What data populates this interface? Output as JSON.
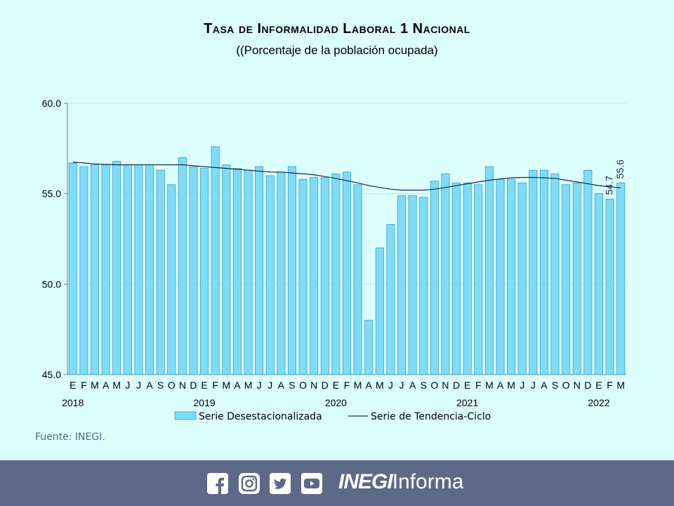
{
  "header": {
    "title": "Tasa de Informalidad Laboral 1 Nacional",
    "subtitle": "((Porcentaje de la población ocupada)"
  },
  "source": "Fuente: INEGI.",
  "footer": {
    "icons": [
      "facebook-icon",
      "instagram-icon",
      "twitter-icon",
      "youtube-icon"
    ],
    "brand_bold": "INEGI",
    "brand_light": "Informa"
  },
  "colors": {
    "bar_fill": "#7fdcf8",
    "bar_stroke": "#3a9fc7",
    "trend": "#1b2a4a",
    "background": "#dcfffe",
    "footer": "#5c6987"
  },
  "chart_data": {
    "type": "bar",
    "title": "Tasa de Informalidad Laboral 1 Nacional",
    "subtitle": "((Porcentaje de la población ocupada)",
    "ylim": [
      45.0,
      60.0
    ],
    "yticks": [
      "45.0",
      "50.0",
      "55.0",
      "60.0"
    ],
    "grid": true,
    "legend_position": "bottom",
    "categories": [
      "E",
      "F",
      "M",
      "A",
      "M",
      "J",
      "J",
      "A",
      "S",
      "O",
      "N",
      "D",
      "E",
      "F",
      "M",
      "A",
      "M",
      "J",
      "J",
      "A",
      "S",
      "O",
      "N",
      "D",
      "E",
      "F",
      "M",
      "A",
      "M",
      "J",
      "J",
      "A",
      "S",
      "O",
      "N",
      "D",
      "E",
      "F",
      "M",
      "A",
      "M",
      "J",
      "J",
      "A",
      "S",
      "O",
      "N",
      "D",
      "E",
      "F",
      "M"
    ],
    "years": [
      {
        "label": "2018",
        "index": 0
      },
      {
        "label": "2019",
        "index": 12
      },
      {
        "label": "2020",
        "index": 24
      },
      {
        "label": "2021",
        "index": 36
      },
      {
        "label": "2022",
        "index": 48
      }
    ],
    "series": [
      {
        "name": "Serie Desestacionalizada",
        "type": "bar",
        "values": [
          56.7,
          56.5,
          56.6,
          56.6,
          56.8,
          56.6,
          56.6,
          56.6,
          56.3,
          55.5,
          57.0,
          56.5,
          56.4,
          57.6,
          56.6,
          56.4,
          56.3,
          56.5,
          56.0,
          56.2,
          56.5,
          55.8,
          55.9,
          55.9,
          56.1,
          56.2,
          55.5,
          48.0,
          52.0,
          53.3,
          54.9,
          54.9,
          54.8,
          55.7,
          56.1,
          55.6,
          55.6,
          55.5,
          56.5,
          55.8,
          55.8,
          55.6,
          56.3,
          56.3,
          56.1,
          55.5,
          55.6,
          56.3,
          55.0,
          54.7,
          55.6
        ]
      },
      {
        "name": "Serie de Tendencia-Ciclo",
        "type": "line",
        "values": [
          56.75,
          56.7,
          56.65,
          56.62,
          56.6,
          56.6,
          56.6,
          56.6,
          56.6,
          56.6,
          56.6,
          56.55,
          56.5,
          56.45,
          56.4,
          56.35,
          56.3,
          56.25,
          56.2,
          56.2,
          56.15,
          56.1,
          56.05,
          55.95,
          55.85,
          55.72,
          55.6,
          55.45,
          55.35,
          55.25,
          55.2,
          55.2,
          55.2,
          55.25,
          55.35,
          55.45,
          55.55,
          55.65,
          55.75,
          55.82,
          55.88,
          55.9,
          55.9,
          55.88,
          55.85,
          55.75,
          55.65,
          55.55,
          55.45,
          55.38,
          55.33
        ]
      }
    ],
    "annotations": [
      "54.7",
      "55.6"
    ]
  }
}
